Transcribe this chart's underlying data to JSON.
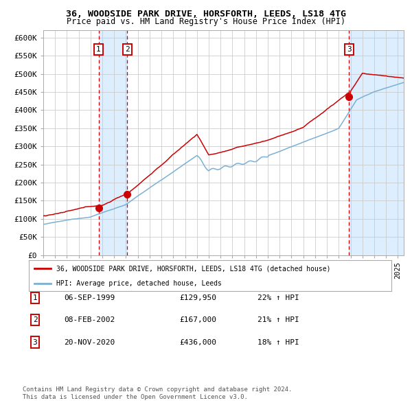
{
  "title1": "36, WOODSIDE PARK DRIVE, HORSFORTH, LEEDS, LS18 4TG",
  "title2": "Price paid vs. HM Land Registry's House Price Index (HPI)",
  "transactions": [
    {
      "num": 1,
      "date": "06-SEP-1999",
      "date_x": 1999.68,
      "price": 129950,
      "pct": "22%",
      "dir": "↑"
    },
    {
      "num": 2,
      "date": "08-FEB-2002",
      "date_x": 2002.1,
      "price": 167000,
      "pct": "21%",
      "dir": "↑"
    },
    {
      "num": 3,
      "date": "20-NOV-2020",
      "date_x": 2020.88,
      "price": 436000,
      "pct": "18%",
      "dir": "↑"
    }
  ],
  "ylabel_ticks": [
    "£0",
    "£50K",
    "£100K",
    "£150K",
    "£200K",
    "£250K",
    "£300K",
    "£350K",
    "£400K",
    "£450K",
    "£500K",
    "£550K",
    "£600K"
  ],
  "ytick_vals": [
    0,
    50000,
    100000,
    150000,
    200000,
    250000,
    300000,
    350000,
    400000,
    450000,
    500000,
    550000,
    600000
  ],
  "xmin": 1995.0,
  "xmax": 2025.5,
  "ymin": 0,
  "ymax": 620000,
  "legend1": "36, WOODSIDE PARK DRIVE, HORSFORTH, LEEDS, LS18 4TG (detached house)",
  "legend2": "HPI: Average price, detached house, Leeds",
  "footer1": "Contains HM Land Registry data © Crown copyright and database right 2024.",
  "footer2": "This data is licensed under the Open Government Licence v3.0.",
  "line_color_property": "#cc0000",
  "line_color_hpi": "#7ab0d4",
  "shade_color": "#ddeeff",
  "vline_color": "#cc0000",
  "dot_color": "#cc0000",
  "background_color": "#ffffff",
  "grid_color": "#cccccc"
}
